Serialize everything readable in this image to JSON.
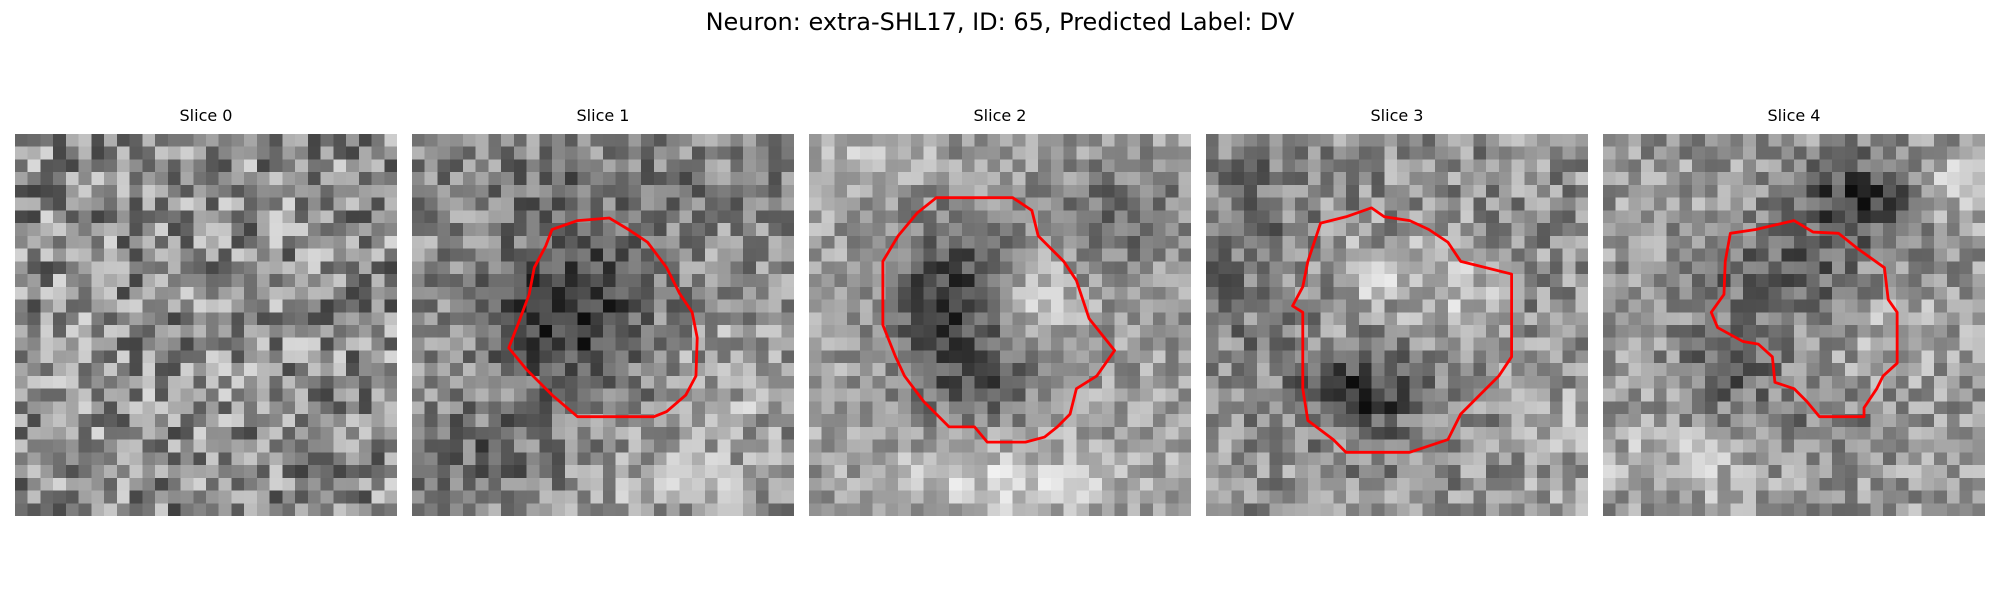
{
  "figure": {
    "title": "Neuron: extra-SHL17, ID: 65, Predicted Label: DV",
    "contour_color": "#ff0000",
    "colormap": "grayscale"
  },
  "panels": [
    {
      "title": "Slice 0"
    },
    {
      "title": "Slice 1"
    },
    {
      "title": "Slice 2"
    },
    {
      "title": "Slice 3"
    },
    {
      "title": "Slice 4"
    }
  ]
}
